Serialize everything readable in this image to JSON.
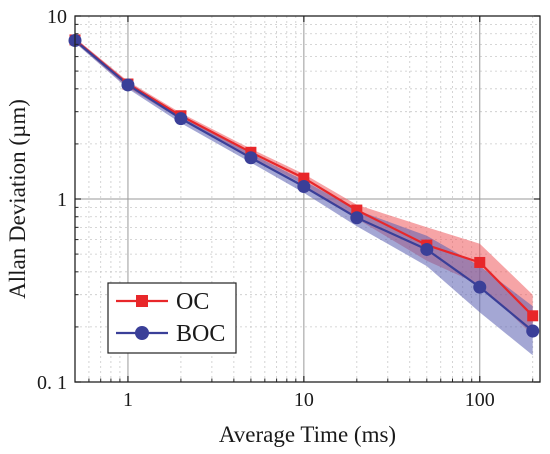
{
  "chart_data": {
    "type": "line",
    "xlabel": "Average Time  (ms)",
    "ylabel": "Allan Deviation (µm)",
    "xscale": "log",
    "yscale": "log",
    "xlim": [
      0.5,
      220
    ],
    "ylim": [
      0.1,
      10
    ],
    "xticks": [
      1,
      10,
      100
    ],
    "xtick_labels": [
      "1",
      "10",
      "100"
    ],
    "yticks": [
      0.1,
      1,
      10
    ],
    "ytick_labels": [
      "0. 1",
      "1",
      "10"
    ],
    "grid": true,
    "legend_position": "bottom-left",
    "x": [
      0.5,
      1,
      2,
      5,
      10,
      20,
      50,
      100,
      200
    ],
    "series": [
      {
        "name": "OC",
        "marker": "square",
        "color": "#e8272a",
        "band_color": "#ef5a5c",
        "values": [
          7.4,
          4.25,
          2.85,
          1.8,
          1.3,
          0.87,
          0.56,
          0.45,
          0.23
        ],
        "band_low": [
          7.2,
          4.05,
          2.72,
          1.7,
          1.2,
          0.78,
          0.46,
          0.34,
          0.18
        ],
        "band_high": [
          7.6,
          4.4,
          2.95,
          1.88,
          1.37,
          0.93,
          0.7,
          0.57,
          0.3
        ]
      },
      {
        "name": "BOC",
        "marker": "circle",
        "color": "#3a3f98",
        "band_color": "#5a5fb0",
        "values": [
          7.35,
          4.2,
          2.75,
          1.68,
          1.17,
          0.79,
          0.53,
          0.33,
          0.19
        ],
        "band_low": [
          7.15,
          4.0,
          2.6,
          1.58,
          1.08,
          0.71,
          0.43,
          0.24,
          0.14
        ],
        "band_high": [
          7.55,
          4.35,
          2.88,
          1.77,
          1.26,
          0.87,
          0.63,
          0.43,
          0.26
        ]
      }
    ]
  }
}
